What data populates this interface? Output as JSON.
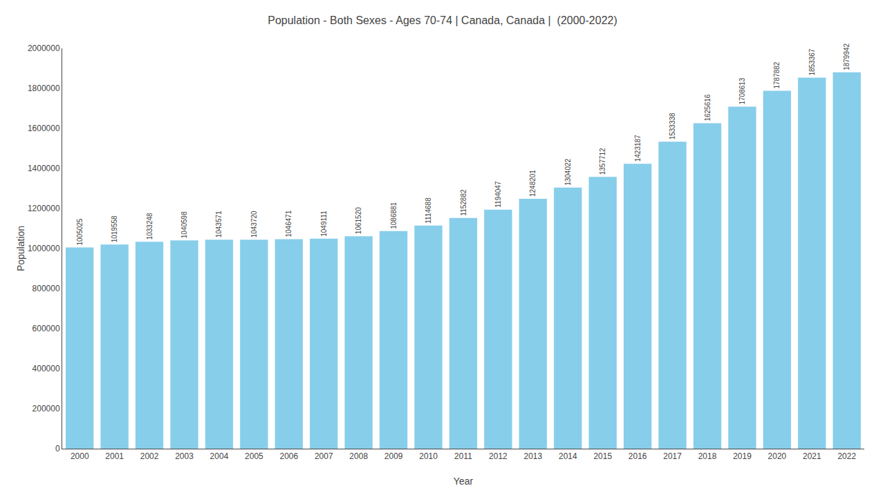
{
  "chart_data": {
    "type": "bar",
    "title": "Population - Both Sexes - Ages 70-74 | Canada, Canada |  (2000-2022)",
    "x_label": "Year",
    "y_label": "Population",
    "categories": [
      "2000",
      "2001",
      "2002",
      "2003",
      "2004",
      "2005",
      "2006",
      "2007",
      "2008",
      "2009",
      "2010",
      "2011",
      "2012",
      "2013",
      "2014",
      "2015",
      "2016",
      "2017",
      "2018",
      "2019",
      "2020",
      "2021",
      "2022"
    ],
    "values": [
      1005025,
      1019558,
      1033248,
      1040598,
      1043571,
      1043720,
      1046471,
      1049111,
      1061520,
      1086881,
      1114688,
      1152882,
      1194047,
      1248201,
      1304022,
      1357712,
      1423187,
      1533338,
      1625616,
      1708613,
      1787882,
      1853367,
      1879942
    ],
    "color": "#87CEEB",
    "ylim": [
      0,
      2000000
    ],
    "yticks": [
      0,
      200000,
      400000,
      600000,
      800000,
      1000000,
      1200000,
      1400000,
      1600000,
      1800000,
      2000000
    ],
    "grid": false,
    "data_labels": true
  }
}
